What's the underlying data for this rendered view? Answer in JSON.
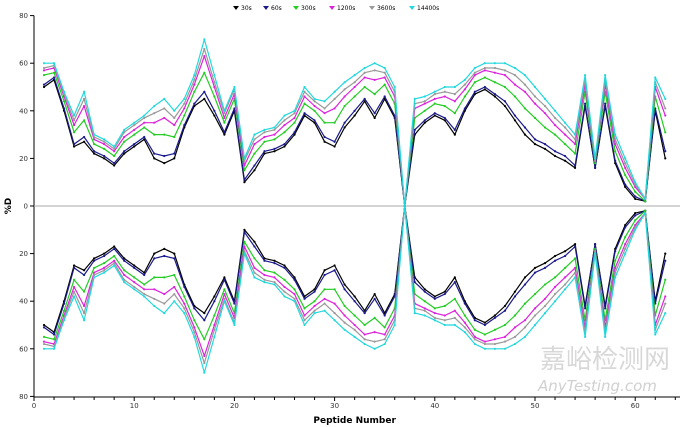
{
  "chart_data": {
    "type": "line",
    "title": "",
    "xlabel": "Peptide Number",
    "ylabel": "%D",
    "xlim": [
      0,
      64
    ],
    "ylim_upper": [
      0,
      80
    ],
    "ylim_lower": [
      0,
      80
    ],
    "xticks": [
      0,
      10,
      20,
      30,
      40,
      50,
      60
    ],
    "yticks_upper": [
      80,
      60,
      40,
      20,
      0
    ],
    "yticks_lower": [
      20,
      40,
      60,
      80
    ],
    "legend_position": "top-center",
    "layout": "butterfly (upper and lower mirrored panels)",
    "x": [
      1,
      2,
      3,
      4,
      5,
      6,
      7,
      8,
      9,
      10,
      11,
      12,
      13,
      14,
      15,
      16,
      17,
      18,
      19,
      20,
      21,
      22,
      23,
      24,
      25,
      26,
      27,
      28,
      29,
      30,
      31,
      32,
      33,
      34,
      35,
      36,
      37,
      38,
      39,
      40,
      41,
      42,
      43,
      44,
      45,
      46,
      47,
      48,
      49,
      50,
      51,
      52,
      53,
      54,
      55,
      56,
      57,
      58,
      59,
      60,
      61,
      62,
      63
    ],
    "series": [
      {
        "name": "30s",
        "color": "#000000",
        "values": [
          50,
          53,
          40,
          25,
          27,
          22,
          20,
          17,
          22,
          25,
          28,
          20,
          18,
          20,
          33,
          42,
          45,
          38,
          30,
          40,
          10,
          15,
          22,
          23,
          25,
          30,
          38,
          35,
          27,
          25,
          33,
          38,
          44,
          37,
          45,
          37,
          0,
          30,
          35,
          38,
          36,
          30,
          40,
          47,
          49,
          46,
          42,
          36,
          30,
          26,
          24,
          21,
          19,
          16,
          42,
          16,
          42,
          18,
          8,
          3,
          2,
          40,
          20
        ]
      },
      {
        "name": "60s",
        "color": "#1a1a8c",
        "values": [
          51,
          54,
          41,
          26,
          29,
          23,
          21,
          18,
          23,
          26,
          29,
          22,
          21,
          22,
          34,
          43,
          48,
          40,
          31,
          41,
          11,
          17,
          23,
          24,
          26,
          31,
          39,
          36,
          29,
          27,
          35,
          40,
          45,
          39,
          46,
          38,
          0,
          32,
          36,
          39,
          37,
          32,
          41,
          48,
          50,
          47,
          44,
          38,
          33,
          28,
          26,
          23,
          21,
          17,
          43,
          16,
          43,
          19,
          9,
          4,
          2,
          41,
          23
        ]
      },
      {
        "name": "300s",
        "color": "#22cc22",
        "values": [
          55,
          56,
          44,
          31,
          36,
          26,
          24,
          21,
          27,
          30,
          33,
          30,
          30,
          29,
          38,
          48,
          56,
          46,
          35,
          45,
          15,
          22,
          27,
          28,
          31,
          35,
          43,
          40,
          35,
          35,
          42,
          46,
          50,
          47,
          51,
          43,
          0,
          37,
          40,
          43,
          42,
          39,
          46,
          52,
          54,
          52,
          50,
          46,
          41,
          37,
          33,
          30,
          26,
          22,
          48,
          18,
          48,
          23,
          13,
          6,
          2,
          46,
          31
        ]
      },
      {
        "name": "1200s",
        "color": "#dd22dd",
        "values": [
          57,
          58,
          46,
          34,
          42,
          28,
          26,
          23,
          29,
          32,
          35,
          35,
          37,
          34,
          41,
          51,
          63,
          50,
          37,
          47,
          17,
          26,
          29,
          30,
          34,
          37,
          46,
          42,
          39,
          41,
          46,
          50,
          54,
          53,
          54,
          46,
          0,
          41,
          43,
          45,
          46,
          44,
          49,
          55,
          57,
          56,
          55,
          51,
          48,
          43,
          39,
          34,
          30,
          26,
          51,
          19,
          51,
          26,
          16,
          8,
          3,
          50,
          38
        ]
      },
      {
        "name": "3600s",
        "color": "#999999",
        "values": [
          58,
          59,
          47,
          36,
          45,
          29,
          27,
          24,
          31,
          34,
          37,
          39,
          41,
          37,
          43,
          53,
          66,
          52,
          39,
          49,
          19,
          28,
          31,
          32,
          36,
          39,
          48,
          44,
          41,
          45,
          49,
          52,
          56,
          57,
          56,
          48,
          0,
          43,
          44,
          47,
          48,
          47,
          51,
          56,
          58,
          58,
          57,
          55,
          51,
          46,
          42,
          37,
          33,
          28,
          53,
          19,
          53,
          28,
          18,
          9,
          3,
          52,
          41
        ]
      },
      {
        "name": "14400s",
        "color": "#22d8dd",
        "values": [
          60,
          60,
          48,
          38,
          48,
          30,
          28,
          25,
          32,
          35,
          38,
          42,
          45,
          40,
          45,
          55,
          70,
          55,
          40,
          50,
          20,
          30,
          32,
          33,
          38,
          40,
          50,
          45,
          44,
          48,
          52,
          55,
          58,
          60,
          58,
          50,
          0,
          45,
          46,
          48,
          50,
          50,
          53,
          58,
          60,
          60,
          60,
          58,
          55,
          50,
          45,
          40,
          35,
          30,
          55,
          20,
          55,
          30,
          20,
          10,
          3,
          54,
          45
        ]
      }
    ]
  },
  "watermark": {
    "cn": "嘉峪检测网",
    "en": "AnyTesting.com"
  }
}
